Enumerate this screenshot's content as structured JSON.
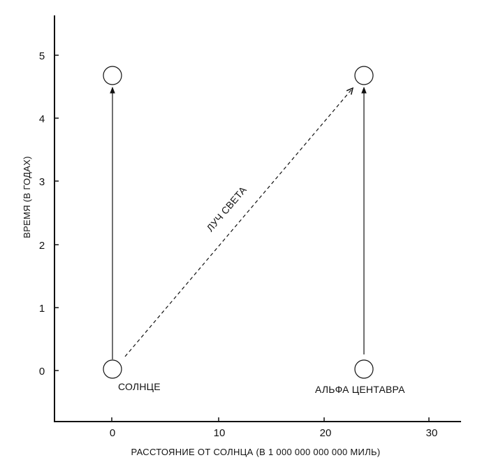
{
  "axes": {
    "x_title": "РАССТОЯНИЕ ОТ СОЛНЦА (В 1 000 000 000 000 МИЛЬ)",
    "y_title": "ВРЕМЯ (В ГОДАХ)",
    "x_ticks": [
      "0",
      "10",
      "20",
      "30"
    ],
    "y_ticks": [
      "0",
      "1",
      "2",
      "3",
      "4",
      "5"
    ]
  },
  "objects": {
    "sun": {
      "label": "СОЛНЦЕ",
      "distance": 0,
      "time_start": 0,
      "time_end": 4.65
    },
    "alpha_centauri": {
      "label": "АЛЬФА ЦЕНТАВРА",
      "distance": 24,
      "time_start": 0,
      "time_end": 4.65
    }
  },
  "light_ray": {
    "label": "ЛУЧ СВЕТА",
    "from": [
      0,
      0
    ],
    "to": [
      24,
      4.65
    ]
  },
  "colors": {
    "ink": "#111111",
    "background": "#ffffff"
  }
}
